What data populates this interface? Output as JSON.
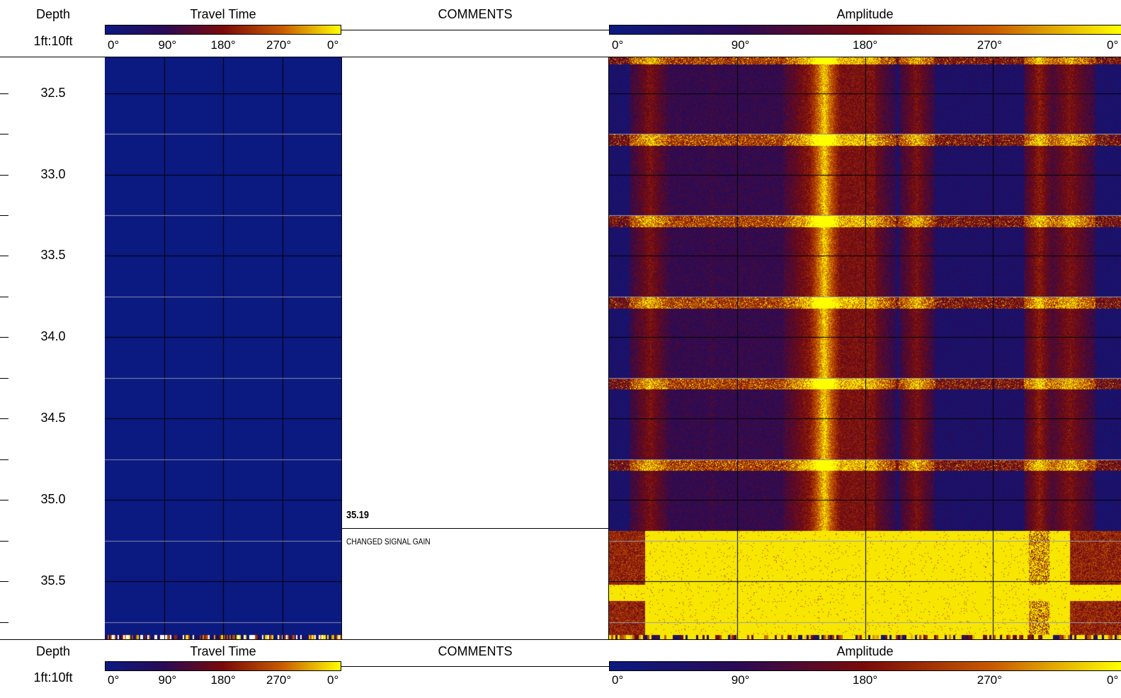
{
  "header": {
    "depth_title": "Depth",
    "depth_scale": "1ft:10ft",
    "travel_title": "Travel Time",
    "comments_title": "COMMENTS",
    "amplitude_title": "Amplitude",
    "travel_ticks": [
      "0°",
      "90°",
      "180°",
      "270°",
      "0°"
    ],
    "amplitude_ticks": [
      "0°",
      "90°",
      "180°",
      "270°",
      "0°"
    ]
  },
  "footer": {
    "depth_title": "Depth",
    "depth_scale": "1ft:10ft",
    "travel_title": "Travel Time",
    "comments_title": "COMMENTS",
    "amplitude_title": "Amplitude",
    "travel_ticks": [
      "0°",
      "90°",
      "180°",
      "270°",
      "0°"
    ],
    "amplitude_ticks": [
      "0°",
      "90°",
      "180°",
      "270°",
      "0°"
    ]
  },
  "comments": [
    {
      "depth": "35.19",
      "text": "CHANGED SIGNAL GAIN"
    }
  ],
  "colors": {
    "low": "#0b1a80",
    "mid": "#7a0a0a",
    "high": "#ffff00",
    "orange": "#c85a00"
  },
  "chart_data": {
    "type": "heatmap",
    "xlabel": "",
    "ylabel": "",
    "x_tick_labels": [
      "0°",
      "90°",
      "180°",
      "270°",
      "0°"
    ],
    "depth_range": [
      32.28,
      35.86
    ],
    "depth_ticks": [
      32.5,
      33.0,
      33.5,
      34.0,
      34.5,
      35.0,
      35.5
    ],
    "depth_tick_labels": [
      "32.5",
      "33.0",
      "33.5",
      "34.0",
      "34.5",
      "35.0",
      "35.5"
    ],
    "tracks": [
      {
        "title": "Travel Time",
        "description_value": "uniform low (blue) over full interval"
      },
      {
        "title": "Amplitude",
        "gain_change_depth": 35.19
      }
    ]
  }
}
